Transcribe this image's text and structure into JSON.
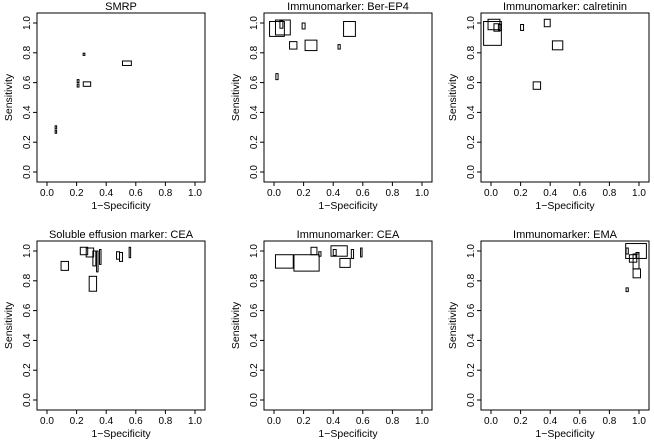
{
  "chart_data": [
    {
      "type": "scatter",
      "marker": "rectangle",
      "title": "SMRP",
      "xlabel": "1−Specificity",
      "ylabel": "Sensitivity",
      "xlim": [
        0,
        1
      ],
      "ylim": [
        0,
        1
      ],
      "xticks": [
        "0.0",
        "0.2",
        "0.4",
        "0.6",
        "0.8",
        "1.0"
      ],
      "yticks": [
        "0.0",
        "0.2",
        "0.4",
        "0.6",
        "0.8",
        "1.0"
      ],
      "points": [
        {
          "x": 0.06,
          "y": 0.3,
          "w": 0.008,
          "h": 0.02
        },
        {
          "x": 0.06,
          "y": 0.27,
          "w": 0.008,
          "h": 0.02
        },
        {
          "x": 0.25,
          "y": 0.79,
          "w": 0.012,
          "h": 0.015
        },
        {
          "x": 0.21,
          "y": 0.61,
          "w": 0.012,
          "h": 0.02
        },
        {
          "x": 0.21,
          "y": 0.58,
          "w": 0.012,
          "h": 0.02
        },
        {
          "x": 0.27,
          "y": 0.59,
          "w": 0.05,
          "h": 0.03
        },
        {
          "x": 0.54,
          "y": 0.73,
          "w": 0.06,
          "h": 0.03
        }
      ]
    },
    {
      "type": "scatter",
      "marker": "rectangle",
      "title": "Immunomarker: Ber-EP4",
      "xlabel": "1−Specificity",
      "ylabel": "Sensitivity",
      "xlim": [
        0,
        1
      ],
      "ylim": [
        0,
        1
      ],
      "xticks": [
        "0.0",
        "0.2",
        "0.4",
        "0.6",
        "0.8",
        "1.0"
      ],
      "yticks": [
        "0.0",
        "0.2",
        "0.4",
        "0.6",
        "0.8",
        "1.0"
      ],
      "points": [
        {
          "x": 0.02,
          "y": 0.96,
          "w": 0.1,
          "h": 0.1
        },
        {
          "x": 0.06,
          "y": 0.97,
          "w": 0.1,
          "h": 0.1
        },
        {
          "x": 0.05,
          "y": 0.99,
          "w": 0.02,
          "h": 0.05
        },
        {
          "x": 0.13,
          "y": 0.85,
          "w": 0.05,
          "h": 0.05
        },
        {
          "x": 0.2,
          "y": 0.98,
          "w": 0.02,
          "h": 0.04
        },
        {
          "x": 0.25,
          "y": 0.85,
          "w": 0.08,
          "h": 0.07
        },
        {
          "x": 0.44,
          "y": 0.84,
          "w": 0.015,
          "h": 0.03
        },
        {
          "x": 0.51,
          "y": 0.96,
          "w": 0.08,
          "h": 0.1
        },
        {
          "x": 0.02,
          "y": 0.64,
          "w": 0.015,
          "h": 0.04
        }
      ]
    },
    {
      "type": "scatter",
      "marker": "rectangle",
      "title": "Immunomarker: calretinin",
      "xlabel": "1−Specificity",
      "ylabel": "Sensitivity",
      "xlim": [
        0,
        1
      ],
      "ylim": [
        0,
        1
      ],
      "xticks": [
        "0.0",
        "0.2",
        "0.4",
        "0.6",
        "0.8",
        "1.0"
      ],
      "yticks": [
        "0.0",
        "0.2",
        "0.4",
        "0.6",
        "0.8",
        "1.0"
      ],
      "points": [
        {
          "x": 0.01,
          "y": 0.93,
          "w": 0.12,
          "h": 0.16
        },
        {
          "x": 0.02,
          "y": 0.99,
          "w": 0.08,
          "h": 0.07
        },
        {
          "x": 0.04,
          "y": 0.97,
          "w": 0.04,
          "h": 0.05
        },
        {
          "x": 0.06,
          "y": 0.97,
          "w": 0.02,
          "h": 0.04
        },
        {
          "x": 0.21,
          "y": 0.97,
          "w": 0.02,
          "h": 0.04
        },
        {
          "x": 0.38,
          "y": 1.0,
          "w": 0.04,
          "h": 0.05
        },
        {
          "x": 0.45,
          "y": 0.85,
          "w": 0.07,
          "h": 0.06
        },
        {
          "x": 0.31,
          "y": 0.58,
          "w": 0.05,
          "h": 0.05
        }
      ]
    },
    {
      "type": "scatter",
      "marker": "rectangle",
      "title": "Soluble effusion marker: CEA",
      "xlabel": "1−Specificity",
      "ylabel": "Sensitivity",
      "xlim": [
        0,
        1
      ],
      "ylim": [
        0,
        1
      ],
      "xticks": [
        "0.0",
        "0.2",
        "0.4",
        "0.6",
        "0.8",
        "1.0"
      ],
      "yticks": [
        "0.0",
        "0.2",
        "0.4",
        "0.6",
        "0.8",
        "1.0"
      ],
      "points": [
        {
          "x": 0.12,
          "y": 0.9,
          "w": 0.05,
          "h": 0.06
        },
        {
          "x": 0.25,
          "y": 1.0,
          "w": 0.05,
          "h": 0.05
        },
        {
          "x": 0.29,
          "y": 0.99,
          "w": 0.05,
          "h": 0.06
        },
        {
          "x": 0.31,
          "y": 0.78,
          "w": 0.05,
          "h": 0.1
        },
        {
          "x": 0.32,
          "y": 0.95,
          "w": 0.02,
          "h": 0.1
        },
        {
          "x": 0.34,
          "y": 0.93,
          "w": 0.01,
          "h": 0.14
        },
        {
          "x": 0.36,
          "y": 0.96,
          "w": 0.01,
          "h": 0.1
        },
        {
          "x": 0.48,
          "y": 0.97,
          "w": 0.02,
          "h": 0.05
        },
        {
          "x": 0.5,
          "y": 0.96,
          "w": 0.02,
          "h": 0.06
        },
        {
          "x": 0.56,
          "y": 0.99,
          "w": 0.01,
          "h": 0.07
        }
      ]
    },
    {
      "type": "scatter",
      "marker": "rectangle",
      "title": "Immunomarker: CEA",
      "xlabel": "1−Specificity",
      "ylabel": "Sensitivity",
      "xlim": [
        0,
        1
      ],
      "ylim": [
        0,
        1
      ],
      "xticks": [
        "0.0",
        "0.2",
        "0.4",
        "0.6",
        "0.8",
        "1.0"
      ],
      "yticks": [
        "0.0",
        "0.2",
        "0.4",
        "0.6",
        "0.8",
        "1.0"
      ],
      "points": [
        {
          "x": 0.07,
          "y": 0.93,
          "w": 0.12,
          "h": 0.09
        },
        {
          "x": 0.22,
          "y": 0.92,
          "w": 0.17,
          "h": 0.11
        },
        {
          "x": 0.27,
          "y": 1.0,
          "w": 0.04,
          "h": 0.05
        },
        {
          "x": 0.31,
          "y": 0.98,
          "w": 0.015,
          "h": 0.03
        },
        {
          "x": 0.41,
          "y": 0.99,
          "w": 0.02,
          "h": 0.04
        },
        {
          "x": 0.44,
          "y": 1.0,
          "w": 0.11,
          "h": 0.07
        },
        {
          "x": 0.48,
          "y": 0.92,
          "w": 0.07,
          "h": 0.06
        },
        {
          "x": 0.53,
          "y": 0.98,
          "w": 0.015,
          "h": 0.06
        },
        {
          "x": 0.59,
          "y": 0.99,
          "w": 0.01,
          "h": 0.06
        }
      ]
    },
    {
      "type": "scatter",
      "marker": "rectangle",
      "title": "Immunomarker: EMA",
      "xlabel": "1−Specificity",
      "ylabel": "Sensitivity",
      "xlim": [
        0,
        1
      ],
      "ylim": [
        0,
        1
      ],
      "xticks": [
        "0.0",
        "0.2",
        "0.4",
        "0.6",
        "0.8",
        "1.0"
      ],
      "yticks": [
        "0.0",
        "0.2",
        "0.4",
        "0.6",
        "0.8",
        "1.0"
      ],
      "points": [
        {
          "x": 0.92,
          "y": 1.0,
          "w": 0.015,
          "h": 0.04
        },
        {
          "x": 0.96,
          "y": 0.95,
          "w": 0.05,
          "h": 0.05
        },
        {
          "x": 0.98,
          "y": 0.93,
          "w": 0.04,
          "h": 0.1
        },
        {
          "x": 0.99,
          "y": 0.97,
          "w": 0.02,
          "h": 0.04
        },
        {
          "x": 0.98,
          "y": 1.0,
          "w": 0.14,
          "h": 0.1
        },
        {
          "x": 0.985,
          "y": 0.85,
          "w": 0.05,
          "h": 0.06
        },
        {
          "x": 0.92,
          "y": 0.74,
          "w": 0.015,
          "h": 0.025
        }
      ]
    }
  ]
}
